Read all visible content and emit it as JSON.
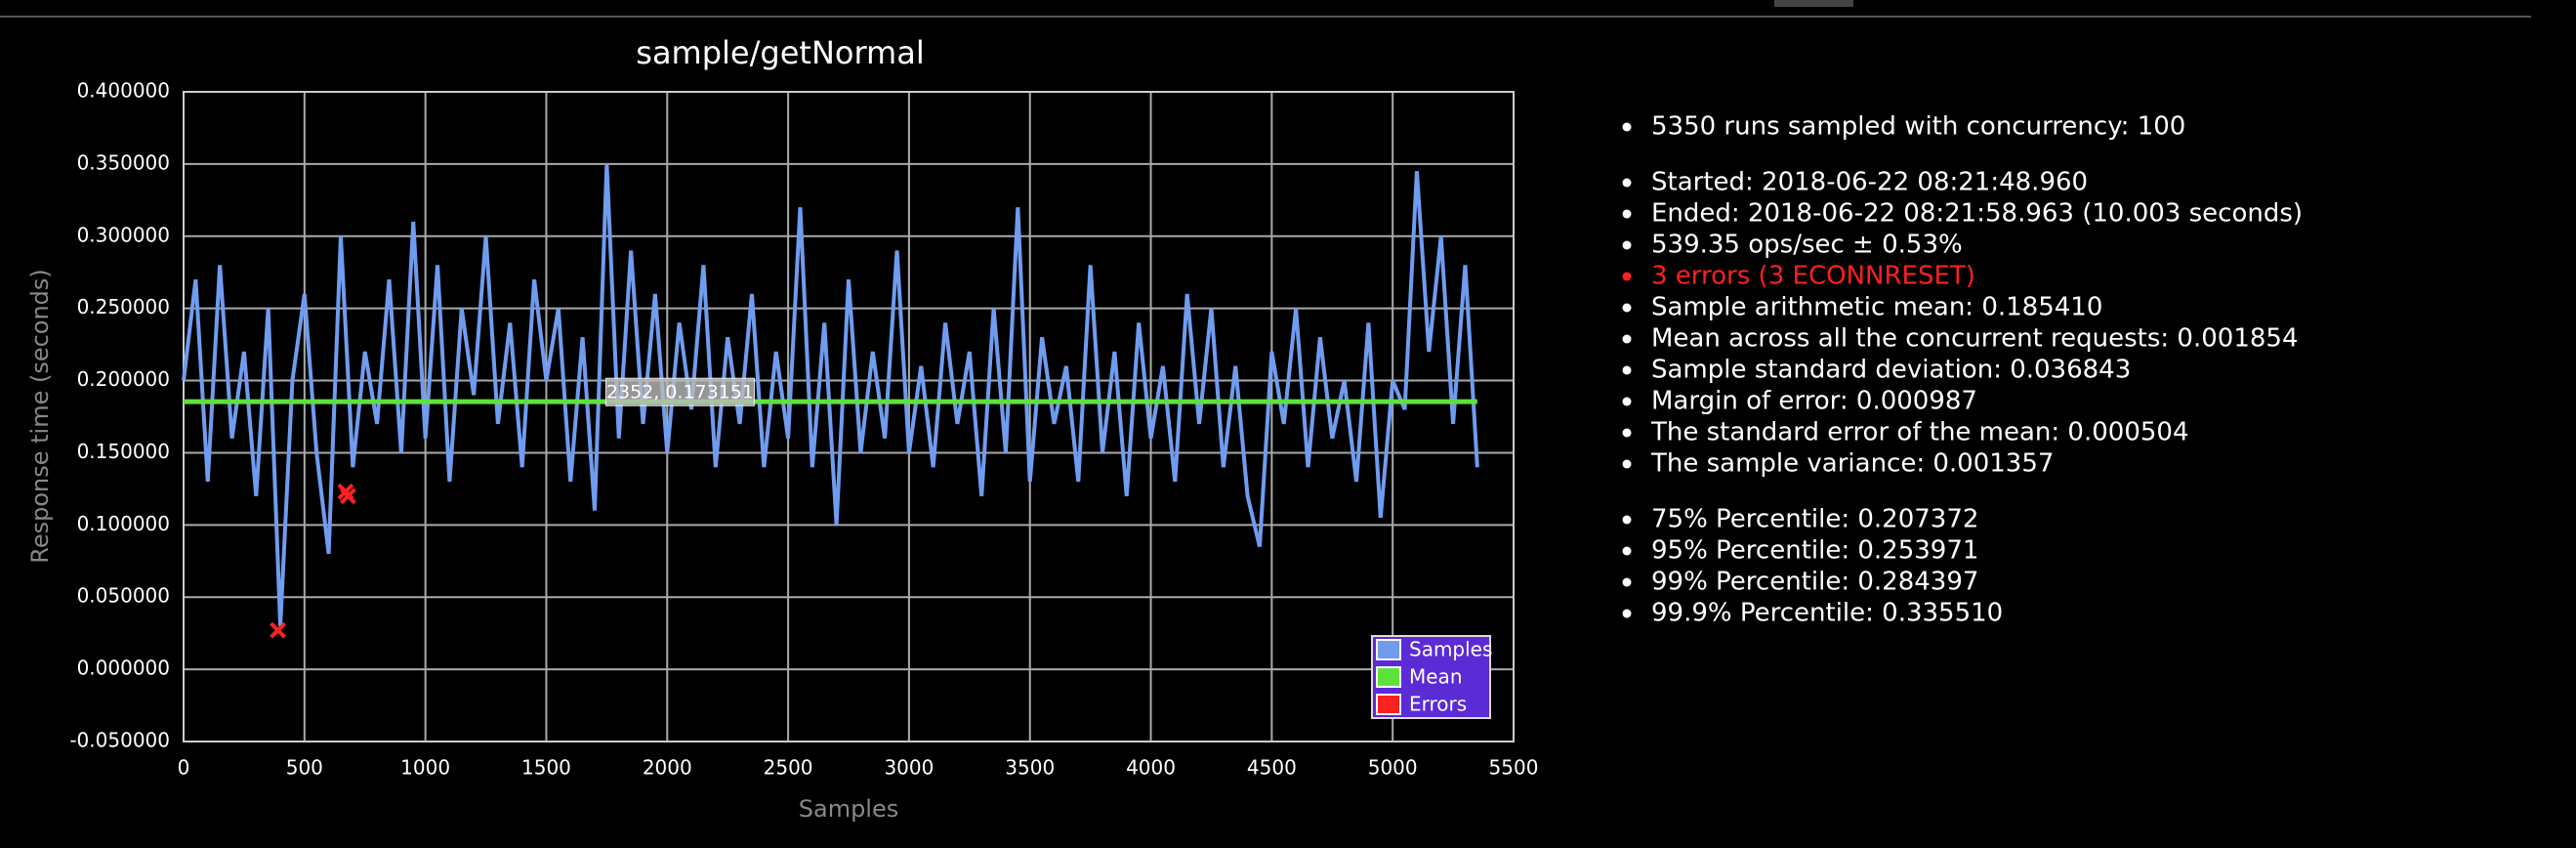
{
  "chart_data": {
    "type": "line",
    "title": "sample/getNormal",
    "xlabel": "Samples",
    "ylabel": "Response time (seconds)",
    "xlim": [
      0,
      5500
    ],
    "ylim": [
      -0.05,
      0.4
    ],
    "xticks": [
      0,
      500,
      1000,
      1500,
      2000,
      2500,
      3000,
      3500,
      4000,
      4500,
      5000,
      5500
    ],
    "yticks": [
      {
        "value": -0.05,
        "label": "-0.050000"
      },
      {
        "value": 0,
        "label": "0.000000"
      },
      {
        "value": 0.05,
        "label": "0.050000"
      },
      {
        "value": 0.1,
        "label": "0.100000"
      },
      {
        "value": 0.15,
        "label": "0.150000"
      },
      {
        "value": 0.2,
        "label": "0.200000"
      },
      {
        "value": 0.25,
        "label": "0.250000"
      },
      {
        "value": 0.3,
        "label": "0.300000"
      },
      {
        "value": 0.35,
        "label": "0.350000"
      },
      {
        "value": 0.4,
        "label": "0.400000"
      }
    ],
    "grid": true,
    "legend": "lower-right",
    "series": [
      {
        "name": "Samples",
        "color": "#6f9cf0",
        "x": [
          0,
          50,
          100,
          150,
          200,
          250,
          300,
          350,
          400,
          450,
          500,
          550,
          600,
          650,
          700,
          750,
          800,
          850,
          900,
          950,
          1000,
          1050,
          1100,
          1150,
          1200,
          1250,
          1300,
          1350,
          1400,
          1450,
          1500,
          1550,
          1600,
          1650,
          1700,
          1750,
          1800,
          1850,
          1900,
          1950,
          2000,
          2050,
          2100,
          2150,
          2200,
          2250,
          2300,
          2350,
          2400,
          2450,
          2500,
          2550,
          2600,
          2650,
          2700,
          2750,
          2800,
          2850,
          2900,
          2950,
          3000,
          3050,
          3100,
          3150,
          3200,
          3250,
          3300,
          3350,
          3400,
          3450,
          3500,
          3550,
          3600,
          3650,
          3700,
          3750,
          3800,
          3850,
          3900,
          3950,
          4000,
          4050,
          4100,
          4150,
          4200,
          4250,
          4300,
          4350,
          4400,
          4450,
          4500,
          4550,
          4600,
          4650,
          4700,
          4750,
          4800,
          4850,
          4900,
          4950,
          5000,
          5050,
          5100,
          5150,
          5200,
          5250,
          5300,
          5350
        ],
        "values": [
          0.2,
          0.27,
          0.13,
          0.28,
          0.16,
          0.22,
          0.12,
          0.25,
          0.03,
          0.2,
          0.26,
          0.15,
          0.08,
          0.3,
          0.14,
          0.22,
          0.17,
          0.27,
          0.15,
          0.31,
          0.16,
          0.28,
          0.13,
          0.25,
          0.19,
          0.3,
          0.17,
          0.24,
          0.14,
          0.27,
          0.2,
          0.25,
          0.13,
          0.23,
          0.11,
          0.35,
          0.16,
          0.29,
          0.17,
          0.26,
          0.15,
          0.24,
          0.18,
          0.28,
          0.14,
          0.23,
          0.17,
          0.26,
          0.14,
          0.22,
          0.16,
          0.32,
          0.14,
          0.24,
          0.1,
          0.27,
          0.15,
          0.22,
          0.16,
          0.29,
          0.15,
          0.21,
          0.14,
          0.24,
          0.17,
          0.22,
          0.12,
          0.25,
          0.15,
          0.32,
          0.13,
          0.23,
          0.17,
          0.21,
          0.13,
          0.28,
          0.15,
          0.22,
          0.12,
          0.24,
          0.16,
          0.21,
          0.13,
          0.26,
          0.17,
          0.25,
          0.14,
          0.21,
          0.12,
          0.085,
          0.22,
          0.17,
          0.25,
          0.14,
          0.23,
          0.16,
          0.2,
          0.13,
          0.24,
          0.105,
          0.2,
          0.18,
          0.345,
          0.22,
          0.3,
          0.17,
          0.28,
          0.14
        ]
      },
      {
        "name": "Mean",
        "color": "#5ee23a",
        "x": [
          0,
          5350
        ],
        "values": [
          0.18541,
          0.18541
        ]
      },
      {
        "name": "Errors",
        "color": "#ff2020",
        "marker": "x",
        "x": [
          390,
          670,
          680
        ],
        "values": [
          0.027,
          0.123,
          0.12
        ]
      }
    ],
    "annotation": {
      "text": "2352, 0.173151",
      "x": 2352,
      "y": 0.173151
    }
  },
  "stats": {
    "groups": [
      [
        "5350 runs sampled with concurrency: 100"
      ],
      [
        "Started: 2018-06-22 08:21:48.960",
        "Ended: 2018-06-22 08:21:58.963 (10.003 seconds)",
        "539.35 ops/sec ± 0.53%",
        {
          "text": "3 errors (3 ECONNRESET)",
          "color": "#ff2020"
        },
        "Sample arithmetic mean: 0.185410",
        "Mean across all the concurrent requests: 0.001854",
        "Sample standard deviation: 0.036843",
        "Margin of error: 0.000987",
        "The standard error of the mean: 0.000504",
        "The sample variance: 0.001357"
      ],
      [
        "75% Percentile: 0.207372",
        "95% Percentile: 0.253971",
        "99% Percentile: 0.284397",
        "99.9% Percentile: 0.335510"
      ]
    ]
  }
}
